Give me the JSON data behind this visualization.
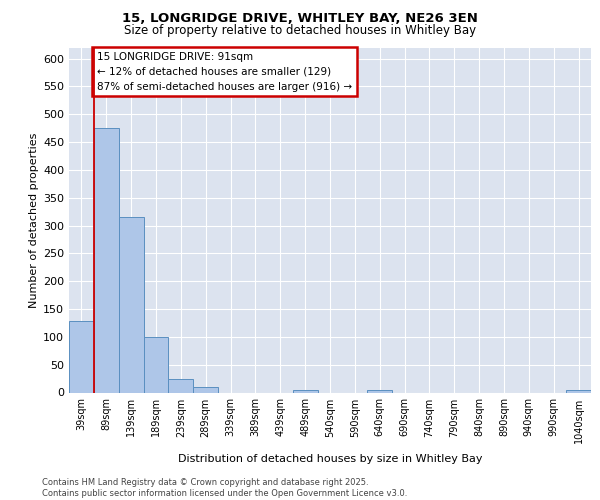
{
  "title_line1": "15, LONGRIDGE DRIVE, WHITLEY BAY, NE26 3EN",
  "title_line2": "Size of property relative to detached houses in Whitley Bay",
  "xlabel": "Distribution of detached houses by size in Whitley Bay",
  "ylabel": "Number of detached properties",
  "bar_labels": [
    "39sqm",
    "89sqm",
    "139sqm",
    "189sqm",
    "239sqm",
    "289sqm",
    "339sqm",
    "389sqm",
    "439sqm",
    "489sqm",
    "540sqm",
    "590sqm",
    "640sqm",
    "690sqm",
    "740sqm",
    "790sqm",
    "840sqm",
    "890sqm",
    "940sqm",
    "990sqm",
    "1040sqm"
  ],
  "bar_values": [
    129,
    475,
    315,
    99,
    25,
    10,
    0,
    0,
    0,
    5,
    0,
    0,
    5,
    0,
    0,
    0,
    0,
    0,
    0,
    0,
    5
  ],
  "bar_color": "#aec6e8",
  "bar_edge_color": "#5a8fc0",
  "bg_color": "#dce3ef",
  "annotation_text": "15 LONGRIDGE DRIVE: 91sqm\n← 12% of detached houses are smaller (129)\n87% of semi-detached houses are larger (916) →",
  "annotation_box_facecolor": "#ffffff",
  "annotation_box_edgecolor": "#cc0000",
  "vline_color": "#cc0000",
  "ylim": [
    0,
    620
  ],
  "yticks": [
    0,
    50,
    100,
    150,
    200,
    250,
    300,
    350,
    400,
    450,
    500,
    550,
    600
  ],
  "footer_text": "Contains HM Land Registry data © Crown copyright and database right 2025.\nContains public sector information licensed under the Open Government Licence v3.0.",
  "fig_width": 6.0,
  "fig_height": 5.0,
  "dpi": 100
}
